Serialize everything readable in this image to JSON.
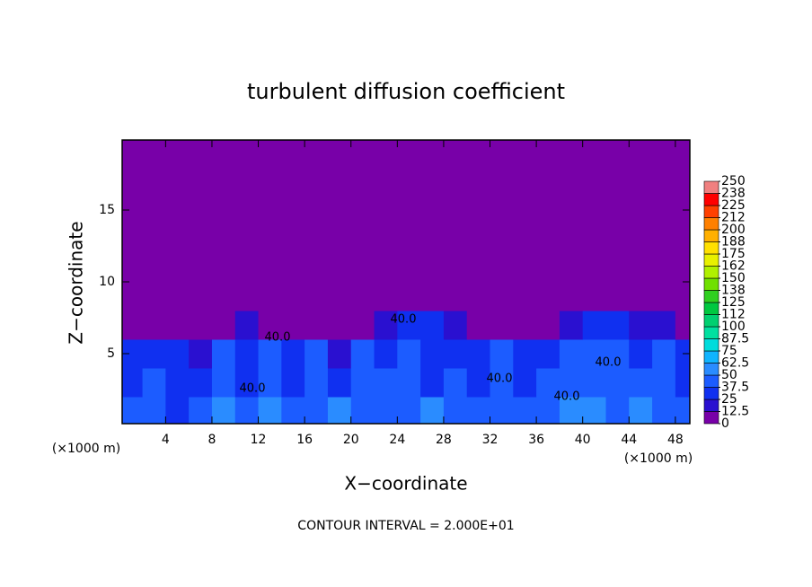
{
  "chart_data": {
    "type": "heatmap",
    "title": "turbulent diffusion coefficient",
    "x_label": "X−coordinate",
    "y_label": "Z−coordinate",
    "x_unit_left": "(×1000 m)",
    "x_unit_right": "(×1000 m)",
    "footer": "CONTOUR INTERVAL = 2.000E+01",
    "annotations": [
      "40.0",
      "40.0",
      "40.0",
      "40.0",
      "40.0",
      "40.0"
    ],
    "xlim": [
      0.25,
      49.25
    ],
    "ylim": [
      0.125,
      19.875
    ],
    "xticks": [
      4,
      8,
      12,
      16,
      20,
      24,
      28,
      32,
      36,
      40,
      44,
      48
    ],
    "yticks": [
      5,
      10,
      15
    ],
    "x": [
      1,
      3,
      5,
      7,
      9,
      11,
      13,
      15,
      17,
      19,
      21,
      23,
      25,
      27,
      29,
      31,
      33,
      35,
      37,
      39,
      41,
      43,
      45,
      47,
      49
    ],
    "y": [
      1,
      3,
      5,
      7,
      9,
      11,
      13,
      15,
      17,
      19
    ],
    "z": [
      [
        45,
        40,
        30,
        45,
        50,
        48,
        50,
        45,
        45,
        50,
        45,
        40,
        45,
        50,
        45,
        48,
        45,
        40,
        45,
        50,
        50,
        48,
        50,
        45,
        40
      ],
      [
        35,
        40,
        25,
        35,
        40,
        35,
        40,
        35,
        40,
        35,
        40,
        45,
        40,
        35,
        40,
        35,
        40,
        35,
        40,
        40,
        45,
        40,
        45,
        40,
        35
      ],
      [
        30,
        35,
        30,
        20,
        40,
        35,
        40,
        30,
        40,
        15,
        40,
        30,
        40,
        35,
        30,
        35,
        40,
        30,
        35,
        40,
        45,
        40,
        35,
        40,
        30
      ],
      [
        10,
        5,
        0,
        0,
        10,
        15,
        5,
        0,
        5,
        10,
        0,
        20,
        25,
        25,
        20,
        5,
        0,
        0,
        10,
        20,
        25,
        25,
        20,
        15,
        10
      ],
      [
        0,
        0,
        0,
        0,
        0,
        0,
        0,
        0,
        0,
        0,
        0,
        0,
        0,
        0,
        0,
        0,
        0,
        0,
        0,
        0,
        0,
        0,
        0,
        0,
        0
      ],
      [
        0,
        0,
        0,
        0,
        0,
        0,
        0,
        0,
        0,
        0,
        0,
        0,
        0,
        0,
        0,
        0,
        0,
        0,
        0,
        0,
        0,
        0,
        0,
        0,
        0
      ],
      [
        0,
        0,
        0,
        0,
        0,
        0,
        0,
        0,
        0,
        0,
        0,
        0,
        0,
        0,
        0,
        0,
        0,
        0,
        0,
        0,
        0,
        0,
        0,
        0,
        0
      ],
      [
        0,
        0,
        0,
        0,
        0,
        0,
        0,
        0,
        0,
        0,
        0,
        0,
        0,
        0,
        0,
        0,
        0,
        0,
        0,
        0,
        0,
        0,
        0,
        0,
        0
      ],
      [
        0,
        0,
        0,
        0,
        0,
        0,
        0,
        0,
        0,
        0,
        0,
        0,
        0,
        0,
        0,
        0,
        0,
        0,
        0,
        0,
        0,
        0,
        0,
        0,
        0
      ],
      [
        0,
        0,
        0,
        0,
        0,
        0,
        0,
        0,
        0,
        0,
        0,
        0,
        0,
        0,
        0,
        0,
        0,
        0,
        0,
        0,
        0,
        0,
        0,
        0,
        0
      ]
    ],
    "colorbar": {
      "levels": [
        0,
        12.5,
        25,
        37.5,
        50,
        62.5,
        75,
        87.5,
        100,
        {
          "value": 112.5,
          "label": "112"
        },
        125,
        {
          "value": 137.5,
          "label": "138"
        },
        150,
        {
          "value": 162.5,
          "label": "162"
        },
        175,
        {
          "value": 187.5,
          "label": "188"
        },
        200,
        {
          "value": 212.5,
          "label": "212"
        },
        225,
        {
          "value": 237.5,
          "label": "238"
        },
        250
      ],
      "colors": [
        "#7800a8",
        "#2a10d0",
        "#1030f0",
        "#1c5cff",
        "#2a8cff",
        "#10b4ff",
        "#00dcdc",
        "#00e0a0",
        "#00d070",
        "#00c840",
        "#30d020",
        "#70e000",
        "#b0f000",
        "#e8f000",
        "#ffe000",
        "#ffb000",
        "#ff8000",
        "#ff4000",
        "#ff0000",
        "#f08080"
      ]
    }
  }
}
